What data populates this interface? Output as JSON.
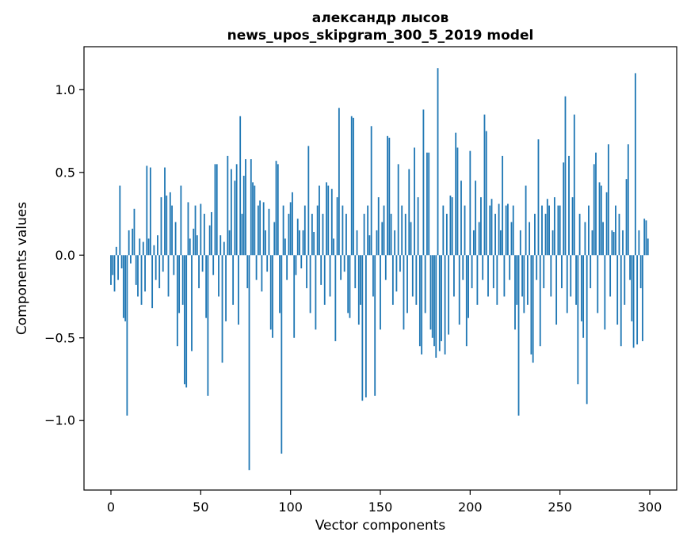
{
  "chart_data": {
    "type": "bar",
    "title_line1": "александр лысов",
    "title_line2": "news_upos_skipgram_300_5_2019 model",
    "xlabel": "Vector components",
    "ylabel": "Components values",
    "bar_color": "#1f77b4",
    "xlim": [
      -15,
      315
    ],
    "ylim": [
      -1.42,
      1.26
    ],
    "xticks": [
      0,
      50,
      100,
      150,
      200,
      250,
      300
    ],
    "yticks": [
      -1.0,
      -0.5,
      0.0,
      0.5,
      1.0
    ],
    "legend": null,
    "grid": false,
    "values": [
      -0.18,
      -0.12,
      -0.22,
      0.05,
      -0.15,
      0.42,
      -0.08,
      -0.38,
      -0.4,
      -0.97,
      0.15,
      -0.05,
      0.16,
      0.28,
      -0.18,
      -0.25,
      0.1,
      -0.3,
      0.08,
      -0.22,
      0.54,
      0.1,
      0.53,
      -0.32,
      0.06,
      -0.15,
      0.12,
      -0.2,
      0.35,
      -0.1,
      0.53,
      0.36,
      -0.25,
      0.38,
      0.3,
      -0.12,
      0.2,
      -0.55,
      -0.35,
      0.42,
      -0.3,
      -0.78,
      -0.8,
      0.32,
      0.1,
      -0.58,
      0.16,
      0.3,
      0.12,
      -0.2,
      0.31,
      -0.1,
      0.25,
      -0.38,
      -0.85,
      0.18,
      0.26,
      -0.12,
      0.55,
      0.55,
      -0.25,
      0.12,
      -0.65,
      0.08,
      -0.4,
      0.6,
      0.15,
      0.52,
      -0.3,
      0.45,
      0.55,
      -0.42,
      0.84,
      0.25,
      0.48,
      0.58,
      -0.2,
      -1.3,
      0.58,
      0.44,
      0.42,
      -0.15,
      0.3,
      0.33,
      -0.22,
      0.32,
      0.15,
      -0.1,
      0.28,
      -0.45,
      -0.5,
      0.2,
      0.57,
      0.55,
      -0.35,
      -1.2,
      0.3,
      0.1,
      -0.15,
      0.25,
      0.32,
      0.38,
      -0.5,
      -0.12,
      0.22,
      0.15,
      -0.08,
      0.15,
      0.3,
      -0.2,
      0.66,
      -0.35,
      0.25,
      0.14,
      -0.45,
      0.3,
      0.42,
      -0.18,
      0.25,
      -0.3,
      0.44,
      0.42,
      -0.25,
      0.4,
      0.1,
      -0.52,
      0.35,
      0.89,
      -0.15,
      0.3,
      -0.1,
      0.25,
      -0.35,
      -0.38,
      0.84,
      0.83,
      -0.2,
      0.15,
      -0.42,
      -0.3,
      -0.88,
      0.25,
      -0.86,
      0.3,
      0.12,
      0.78,
      -0.25,
      -0.85,
      0.15,
      0.35,
      -0.45,
      0.2,
      0.3,
      -0.15,
      0.72,
      0.71,
      0.25,
      -0.3,
      0.15,
      -0.22,
      0.55,
      -0.1,
      0.3,
      -0.45,
      0.25,
      -0.35,
      0.52,
      0.2,
      -0.25,
      0.65,
      -0.3,
      0.35,
      -0.55,
      -0.6,
      0.88,
      -0.35,
      0.62,
      0.62,
      -0.45,
      -0.5,
      -0.55,
      -0.62,
      1.13,
      -0.58,
      -0.52,
      0.3,
      -0.6,
      0.25,
      -0.48,
      0.36,
      0.35,
      -0.25,
      0.74,
      0.65,
      -0.42,
      0.45,
      -0.15,
      0.3,
      -0.55,
      -0.38,
      0.63,
      -0.2,
      0.15,
      0.45,
      -0.3,
      0.2,
      0.35,
      -0.15,
      0.85,
      0.75,
      -0.25,
      0.3,
      0.34,
      -0.2,
      0.25,
      -0.3,
      0.31,
      0.15,
      0.6,
      -0.25,
      0.3,
      0.31,
      -0.15,
      0.2,
      0.3,
      -0.45,
      -0.3,
      -0.97,
      0.15,
      -0.25,
      -0.35,
      0.42,
      -0.3,
      0.2,
      -0.6,
      -0.65,
      0.25,
      -0.15,
      0.7,
      -0.55,
      0.3,
      -0.2,
      0.25,
      0.34,
      0.3,
      -0.25,
      0.15,
      0.35,
      -0.42,
      0.3,
      0.3,
      -0.2,
      0.56,
      0.96,
      -0.35,
      0.6,
      -0.25,
      0.35,
      0.85,
      -0.3,
      -0.78,
      0.25,
      -0.4,
      -0.5,
      0.2,
      -0.9,
      0.3,
      -0.2,
      0.15,
      0.55,
      0.62,
      -0.35,
      0.44,
      0.42,
      0.2,
      -0.45,
      0.38,
      0.67,
      -0.25,
      0.15,
      0.14,
      0.3,
      -0.42,
      0.25,
      -0.55,
      0.15,
      -0.3,
      0.46,
      0.67,
      -0.15,
      -0.4,
      -0.56,
      1.1,
      -0.54,
      0.15,
      -0.2,
      -0.52,
      0.22,
      0.21,
      0.1
    ]
  }
}
